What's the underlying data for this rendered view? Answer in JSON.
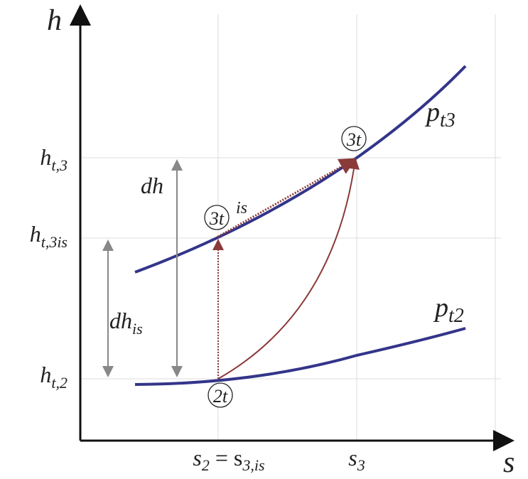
{
  "axes": {
    "y_label": "h",
    "x_label": "s"
  },
  "y_ticks": [
    {
      "base": "h",
      "sub": "t,3"
    },
    {
      "base": "h",
      "sub": "t,3is"
    },
    {
      "base": "h",
      "sub": "t,2"
    }
  ],
  "x_ticks": [
    {
      "base": "s",
      "sub": "2",
      "rest": " = s",
      "sub2": "3,is"
    },
    {
      "base": "s",
      "sub": "3"
    }
  ],
  "curves": [
    {
      "base": "p",
      "sub": "t3"
    },
    {
      "base": "p",
      "sub": "t2"
    }
  ],
  "points": [
    {
      "label": "3t"
    },
    {
      "label": "3t",
      "sup": "is"
    },
    {
      "label": "2t"
    }
  ],
  "differences": [
    {
      "base": "dh"
    },
    {
      "base": "dh",
      "sub": "is"
    }
  ]
}
